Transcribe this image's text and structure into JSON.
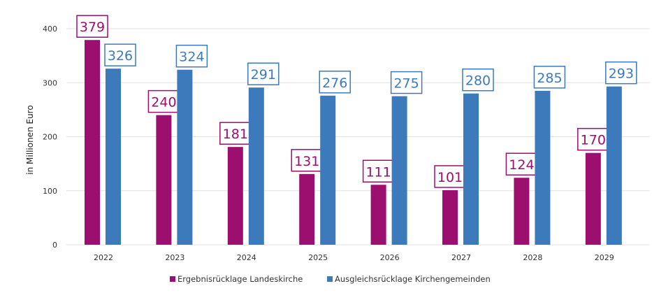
{
  "chart_data": {
    "type": "bar",
    "title": "",
    "xlabel": "",
    "ylabel": "in Millionen Euro",
    "ylim": [
      0,
      400
    ],
    "yticks": [
      0,
      100,
      200,
      300,
      400
    ],
    "grid": true,
    "legend_position": "bottom",
    "categories": [
      "2022",
      "2023",
      "2024",
      "2025",
      "2026",
      "2027",
      "2028",
      "2029"
    ],
    "series": [
      {
        "name": "Ergebnisrücklage Landeskirche",
        "color": "#9c0f6e",
        "values": [
          379,
          240,
          181,
          131,
          111,
          101,
          124,
          170
        ]
      },
      {
        "name": "Ausgleichsrücklage Kirchengemeinden",
        "color": "#3d7abb",
        "values": [
          326,
          324,
          291,
          276,
          275,
          280,
          285,
          293
        ]
      }
    ]
  }
}
